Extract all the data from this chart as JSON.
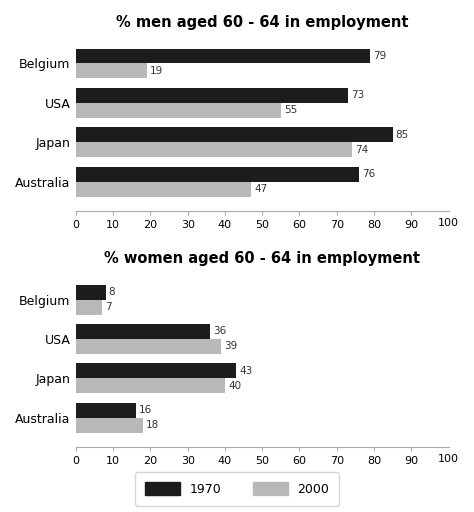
{
  "men_title": "% men aged 60 - 64 in employment",
  "women_title": "% women aged 60 - 64 in employment",
  "countries": [
    "Belgium",
    "USA",
    "Japan",
    "Australia"
  ],
  "men_1970": [
    79,
    73,
    85,
    76
  ],
  "men_2000": [
    19,
    55,
    74,
    47
  ],
  "women_1970": [
    8,
    36,
    43,
    16
  ],
  "women_2000": [
    7,
    39,
    40,
    18
  ],
  "color_1970": "#1c1c1c",
  "color_2000": "#b8b8b8",
  "xlim": [
    0,
    100
  ],
  "xticks": [
    0,
    10,
    20,
    30,
    40,
    50,
    60,
    70,
    80,
    90
  ],
  "bar_height": 0.38,
  "label_1970": "1970",
  "label_2000": "2000",
  "bg_color": "#ffffff",
  "title_fontsize": 10.5,
  "label_fontsize": 9,
  "tick_fontsize": 8,
  "value_fontsize": 7.5
}
